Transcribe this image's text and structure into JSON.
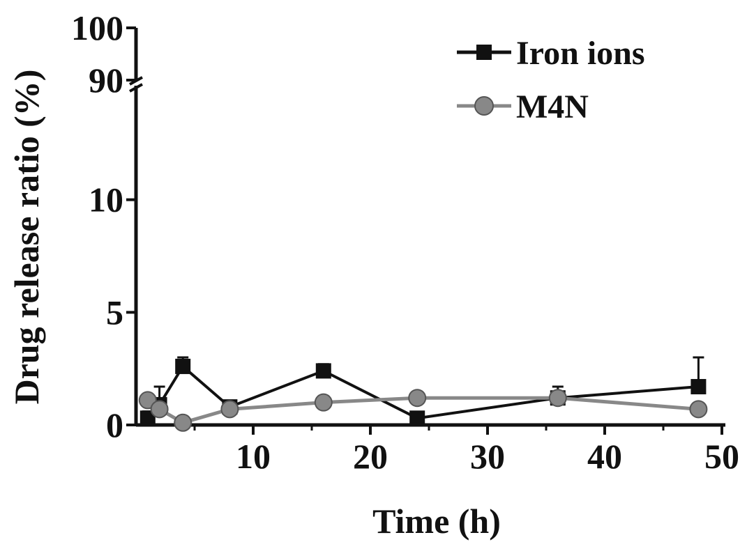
{
  "chart_data": {
    "type": "line",
    "xlabel": "Time (h)",
    "ylabel": "Drug release ratio (%)",
    "xlim": [
      0,
      50
    ],
    "ylim_lower": [
      0,
      15
    ],
    "ylim_upper": [
      90,
      100
    ],
    "axis_break": true,
    "x_ticks": [
      10,
      20,
      30,
      40,
      50
    ],
    "y_ticks_lower": [
      0,
      5,
      10
    ],
    "y_ticks_upper": [
      90,
      100
    ],
    "legend_position": "top-right",
    "grid": false,
    "series": [
      {
        "name": "Iron ions",
        "marker": "square",
        "color": "#111111",
        "x": [
          1,
          2,
          4,
          8,
          16,
          24,
          36,
          48
        ],
        "y": [
          0.3,
          0.9,
          2.6,
          0.8,
          2.4,
          0.3,
          1.2,
          1.7
        ],
        "err": [
          0.3,
          0.8,
          0.4,
          0.2,
          0.3,
          0.1,
          0.5,
          1.3
        ]
      },
      {
        "name": "M4N",
        "marker": "circle",
        "color": "#888888",
        "x": [
          1,
          2,
          4,
          8,
          16,
          24,
          36,
          48
        ],
        "y": [
          1.1,
          0.7,
          0.1,
          0.7,
          1.0,
          1.2,
          1.2,
          0.7
        ],
        "err": [
          0.2,
          0.2,
          0.1,
          0.2,
          0.2,
          0.2,
          0.2,
          0.2
        ]
      }
    ]
  }
}
